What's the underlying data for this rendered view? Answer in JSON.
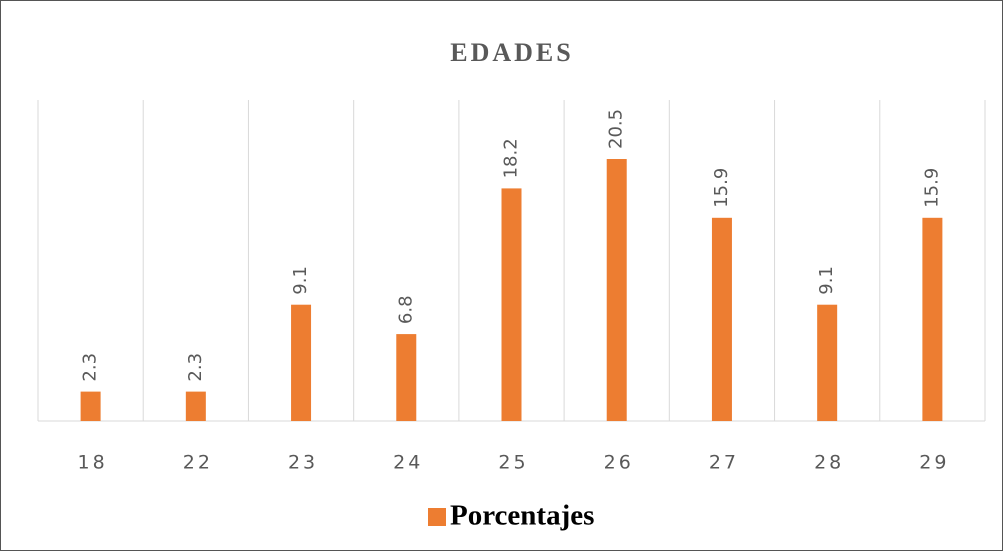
{
  "chart_data": {
    "type": "bar",
    "title": "EDADES",
    "categories": [
      "18",
      "22",
      "23",
      "24",
      "25",
      "26",
      "27",
      "28",
      "29"
    ],
    "series": [
      {
        "name": "Porcentajes",
        "color": "#ed7d31",
        "values": [
          2.3,
          2.3,
          9.1,
          6.8,
          18.2,
          20.5,
          15.9,
          9.1,
          15.9
        ]
      }
    ],
    "grid": true,
    "legend": "bottom"
  }
}
